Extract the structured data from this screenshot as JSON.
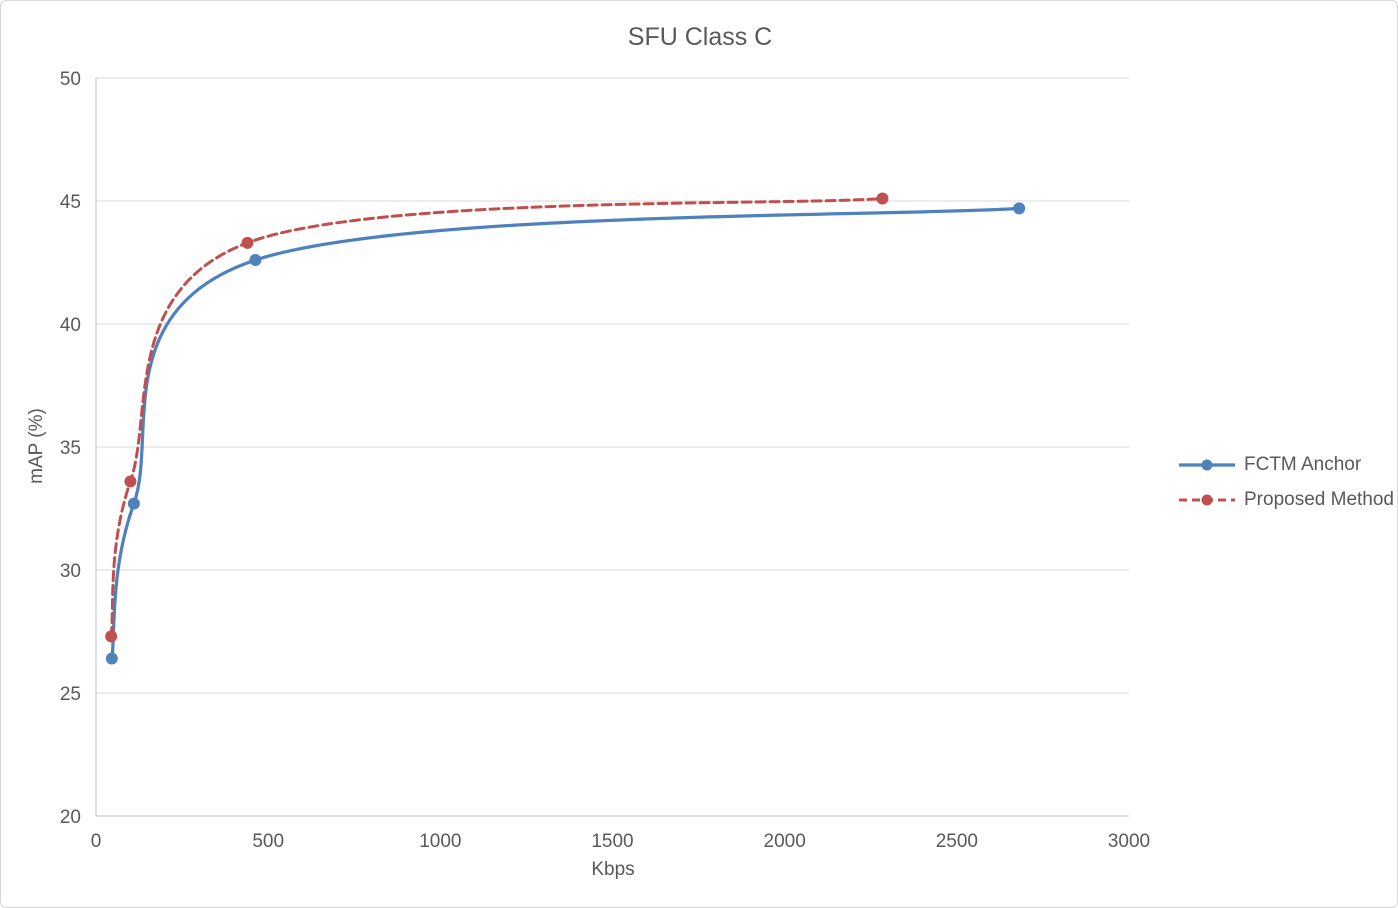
{
  "chart_data": {
    "type": "line",
    "title": "SFU Class C",
    "xlabel": "Kbps",
    "ylabel": "mAP (%)",
    "xlim": [
      0,
      3000
    ],
    "ylim": [
      20,
      50
    ],
    "xticks": [
      0,
      500,
      1000,
      1500,
      2000,
      2500,
      3000
    ],
    "yticks": [
      20,
      25,
      30,
      35,
      40,
      45,
      50
    ],
    "grid": "horizontal-only",
    "legend_position": "right-center",
    "series": [
      {
        "name": "FCTM Anchor",
        "color": "#4F81BD",
        "dash": "solid",
        "marker": "circle",
        "smooth": true,
        "points": [
          [
            46,
            26.4
          ],
          [
            110,
            32.7
          ],
          [
            463,
            42.6
          ],
          [
            2681,
            44.7
          ]
        ]
      },
      {
        "name": "Proposed Method",
        "color": "#C0504D",
        "dash": "dashed",
        "marker": "circle",
        "smooth": true,
        "points": [
          [
            44,
            27.3
          ],
          [
            100,
            33.6
          ],
          [
            440,
            43.3
          ],
          [
            2284,
            45.1
          ]
        ]
      }
    ]
  },
  "colors": {
    "text": "#595959",
    "gridline": "#D9D9D9",
    "axis": "#BFBFBF",
    "background": "#FFFFFF",
    "frame_border": "#D7D7D7"
  }
}
